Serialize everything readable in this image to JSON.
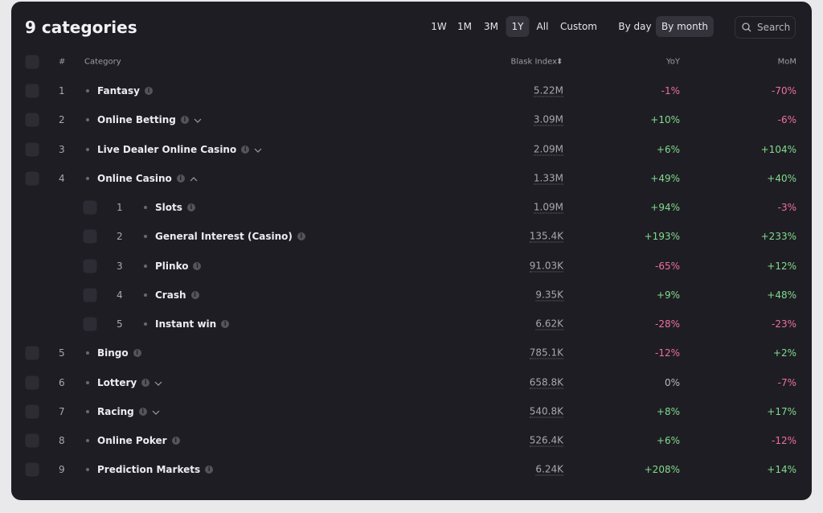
{
  "header": {
    "title": "9 categories",
    "ranges": [
      {
        "label": "1W"
      },
      {
        "label": "1M"
      },
      {
        "label": "3M"
      },
      {
        "label": "1Y",
        "active": true
      },
      {
        "label": "All"
      },
      {
        "label": "Custom"
      }
    ],
    "granularity": [
      {
        "label": "By day"
      },
      {
        "label": "By month",
        "active": true
      }
    ],
    "search": "Search"
  },
  "table": {
    "columns": [
      "#",
      "Category",
      "Blask Index",
      "YoY",
      "MoM"
    ],
    "rows": [
      {
        "rank": "1",
        "name": "Fantasy",
        "index": "5.22M",
        "yoy": "-1%",
        "mom": "-70%"
      },
      {
        "rank": "2",
        "name": "Online Betting",
        "index": "3.09M",
        "yoy": "+10%",
        "mom": "-6%",
        "chevron": "down"
      },
      {
        "rank": "3",
        "name": "Live Dealer Online Casino",
        "index": "2.09M",
        "yoy": "+6%",
        "mom": "+104%",
        "chevron": "down"
      },
      {
        "rank": "4",
        "name": "Online Casino",
        "index": "1.33M",
        "yoy": "+49%",
        "mom": "+40%",
        "chevron": "up",
        "children": [
          {
            "rank": "1",
            "name": "Slots",
            "index": "1.09M",
            "yoy": "+94%",
            "mom": "-3%"
          },
          {
            "rank": "2",
            "name": "General Interest (Casino)",
            "index": "135.4K",
            "yoy": "+193%",
            "mom": "+233%"
          },
          {
            "rank": "3",
            "name": "Plinko",
            "index": "91.03K",
            "yoy": "-65%",
            "mom": "+12%"
          },
          {
            "rank": "4",
            "name": "Crash",
            "index": "9.35K",
            "yoy": "+9%",
            "mom": "+48%"
          },
          {
            "rank": "5",
            "name": "Instant win",
            "index": "6.62K",
            "yoy": "-28%",
            "mom": "-23%"
          }
        ]
      },
      {
        "rank": "5",
        "name": "Bingo",
        "index": "785.1K",
        "yoy": "-12%",
        "mom": "+2%"
      },
      {
        "rank": "6",
        "name": "Lottery",
        "index": "658.8K",
        "yoy": "0%",
        "mom": "-7%",
        "chevron": "down"
      },
      {
        "rank": "7",
        "name": "Racing",
        "index": "540.8K",
        "yoy": "+8%",
        "mom": "+17%",
        "chevron": "down"
      },
      {
        "rank": "8",
        "name": "Online Poker",
        "index": "526.4K",
        "yoy": "+6%",
        "mom": "-12%"
      },
      {
        "rank": "9",
        "name": "Prediction Markets",
        "index": "6.24K",
        "yoy": "+208%",
        "mom": "+14%"
      }
    ]
  }
}
